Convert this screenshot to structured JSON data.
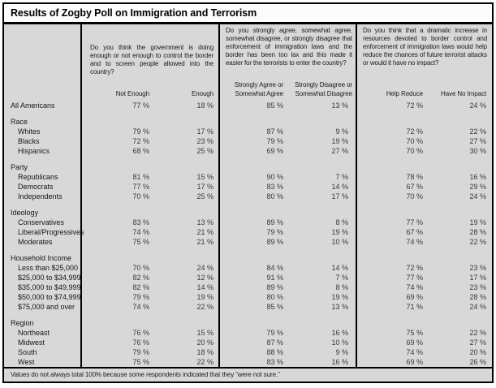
{
  "title": "Results of Zogby Poll on Immigration and Terrorism",
  "footnote": "Values do not always total 100% because some respondents indicated that they “were not sure.”",
  "unit": "%",
  "questions": [
    {
      "text": "Do you think the government is doing enough or not enough to control the border and to screen people allowed into the country?",
      "columns": [
        "Not Enough",
        "Enough"
      ]
    },
    {
      "text": "Do you strongly agree, somewhat agree, somewhat disagree, or strongly disagree that enforcement of immigration laws and the border has been too lax and this made it easier for the terrorists to enter the country?",
      "columns": [
        "Strongly Agree or\nSomewhat Agree",
        "Strongly Disagree or\nSomewhat Disagree"
      ]
    },
    {
      "text": "Do you think that a dramatic increase in resources devoted to border control and enforcement of immigration laws would help reduce the chances of future terrorist attacks or would it have no impact?",
      "columns": [
        "Help Reduce",
        "Have No Impact"
      ]
    }
  ],
  "sections": [
    {
      "header": null,
      "rows": [
        {
          "label": "All Americans",
          "values": [
            77,
            18,
            85,
            13,
            72,
            24
          ]
        }
      ]
    },
    {
      "header": "Race",
      "rows": [
        {
          "label": "Whites",
          "values": [
            79,
            17,
            87,
            9,
            72,
            22
          ]
        },
        {
          "label": "Blacks",
          "values": [
            72,
            23,
            79,
            19,
            70,
            27
          ]
        },
        {
          "label": "Hispanics",
          "values": [
            68,
            25,
            69,
            27,
            70,
            30
          ]
        }
      ]
    },
    {
      "header": "Party",
      "rows": [
        {
          "label": "Republicans",
          "values": [
            81,
            15,
            90,
            7,
            78,
            16
          ]
        },
        {
          "label": "Democrats",
          "values": [
            77,
            17,
            83,
            14,
            67,
            29
          ]
        },
        {
          "label": "Independents",
          "values": [
            70,
            25,
            80,
            17,
            70,
            24
          ]
        }
      ]
    },
    {
      "header": "Ideology",
      "rows": [
        {
          "label": "Conservatives",
          "values": [
            83,
            13,
            89,
            8,
            77,
            19
          ]
        },
        {
          "label": "Liberal/Progressives",
          "values": [
            74,
            21,
            79,
            19,
            67,
            28
          ]
        },
        {
          "label": "Moderates",
          "values": [
            75,
            21,
            89,
            10,
            74,
            22
          ]
        }
      ]
    },
    {
      "header": "Household Income",
      "rows": [
        {
          "label": "Less than $25,000",
          "values": [
            70,
            24,
            84,
            14,
            72,
            23
          ]
        },
        {
          "label": "$25,000 to $34,999",
          "values": [
            82,
            12,
            91,
            7,
            77,
            17
          ]
        },
        {
          "label": "$35,000 to $49,999",
          "values": [
            82,
            14,
            89,
            8,
            74,
            23
          ]
        },
        {
          "label": "$50,000 to $74,999",
          "values": [
            79,
            19,
            80,
            19,
            69,
            28
          ]
        },
        {
          "label": "$75,000 and over",
          "values": [
            74,
            22,
            85,
            13,
            71,
            24
          ]
        }
      ]
    },
    {
      "header": "Region",
      "rows": [
        {
          "label": "Northeast",
          "values": [
            76,
            15,
            79,
            16,
            75,
            22
          ]
        },
        {
          "label": "Midwest",
          "values": [
            76,
            20,
            87,
            10,
            69,
            27
          ]
        },
        {
          "label": "South",
          "values": [
            79,
            18,
            88,
            9,
            74,
            20
          ]
        },
        {
          "label": "West",
          "values": [
            75,
            22,
            83,
            16,
            69,
            26
          ]
        }
      ]
    }
  ],
  "colors": {
    "page_bg": "#ffffff",
    "panel_bg": "#d8d8d8",
    "title_bg": "#fcfcfc",
    "border": "#000000",
    "label_text": "#161616",
    "value_text": "#3a3a3a"
  }
}
